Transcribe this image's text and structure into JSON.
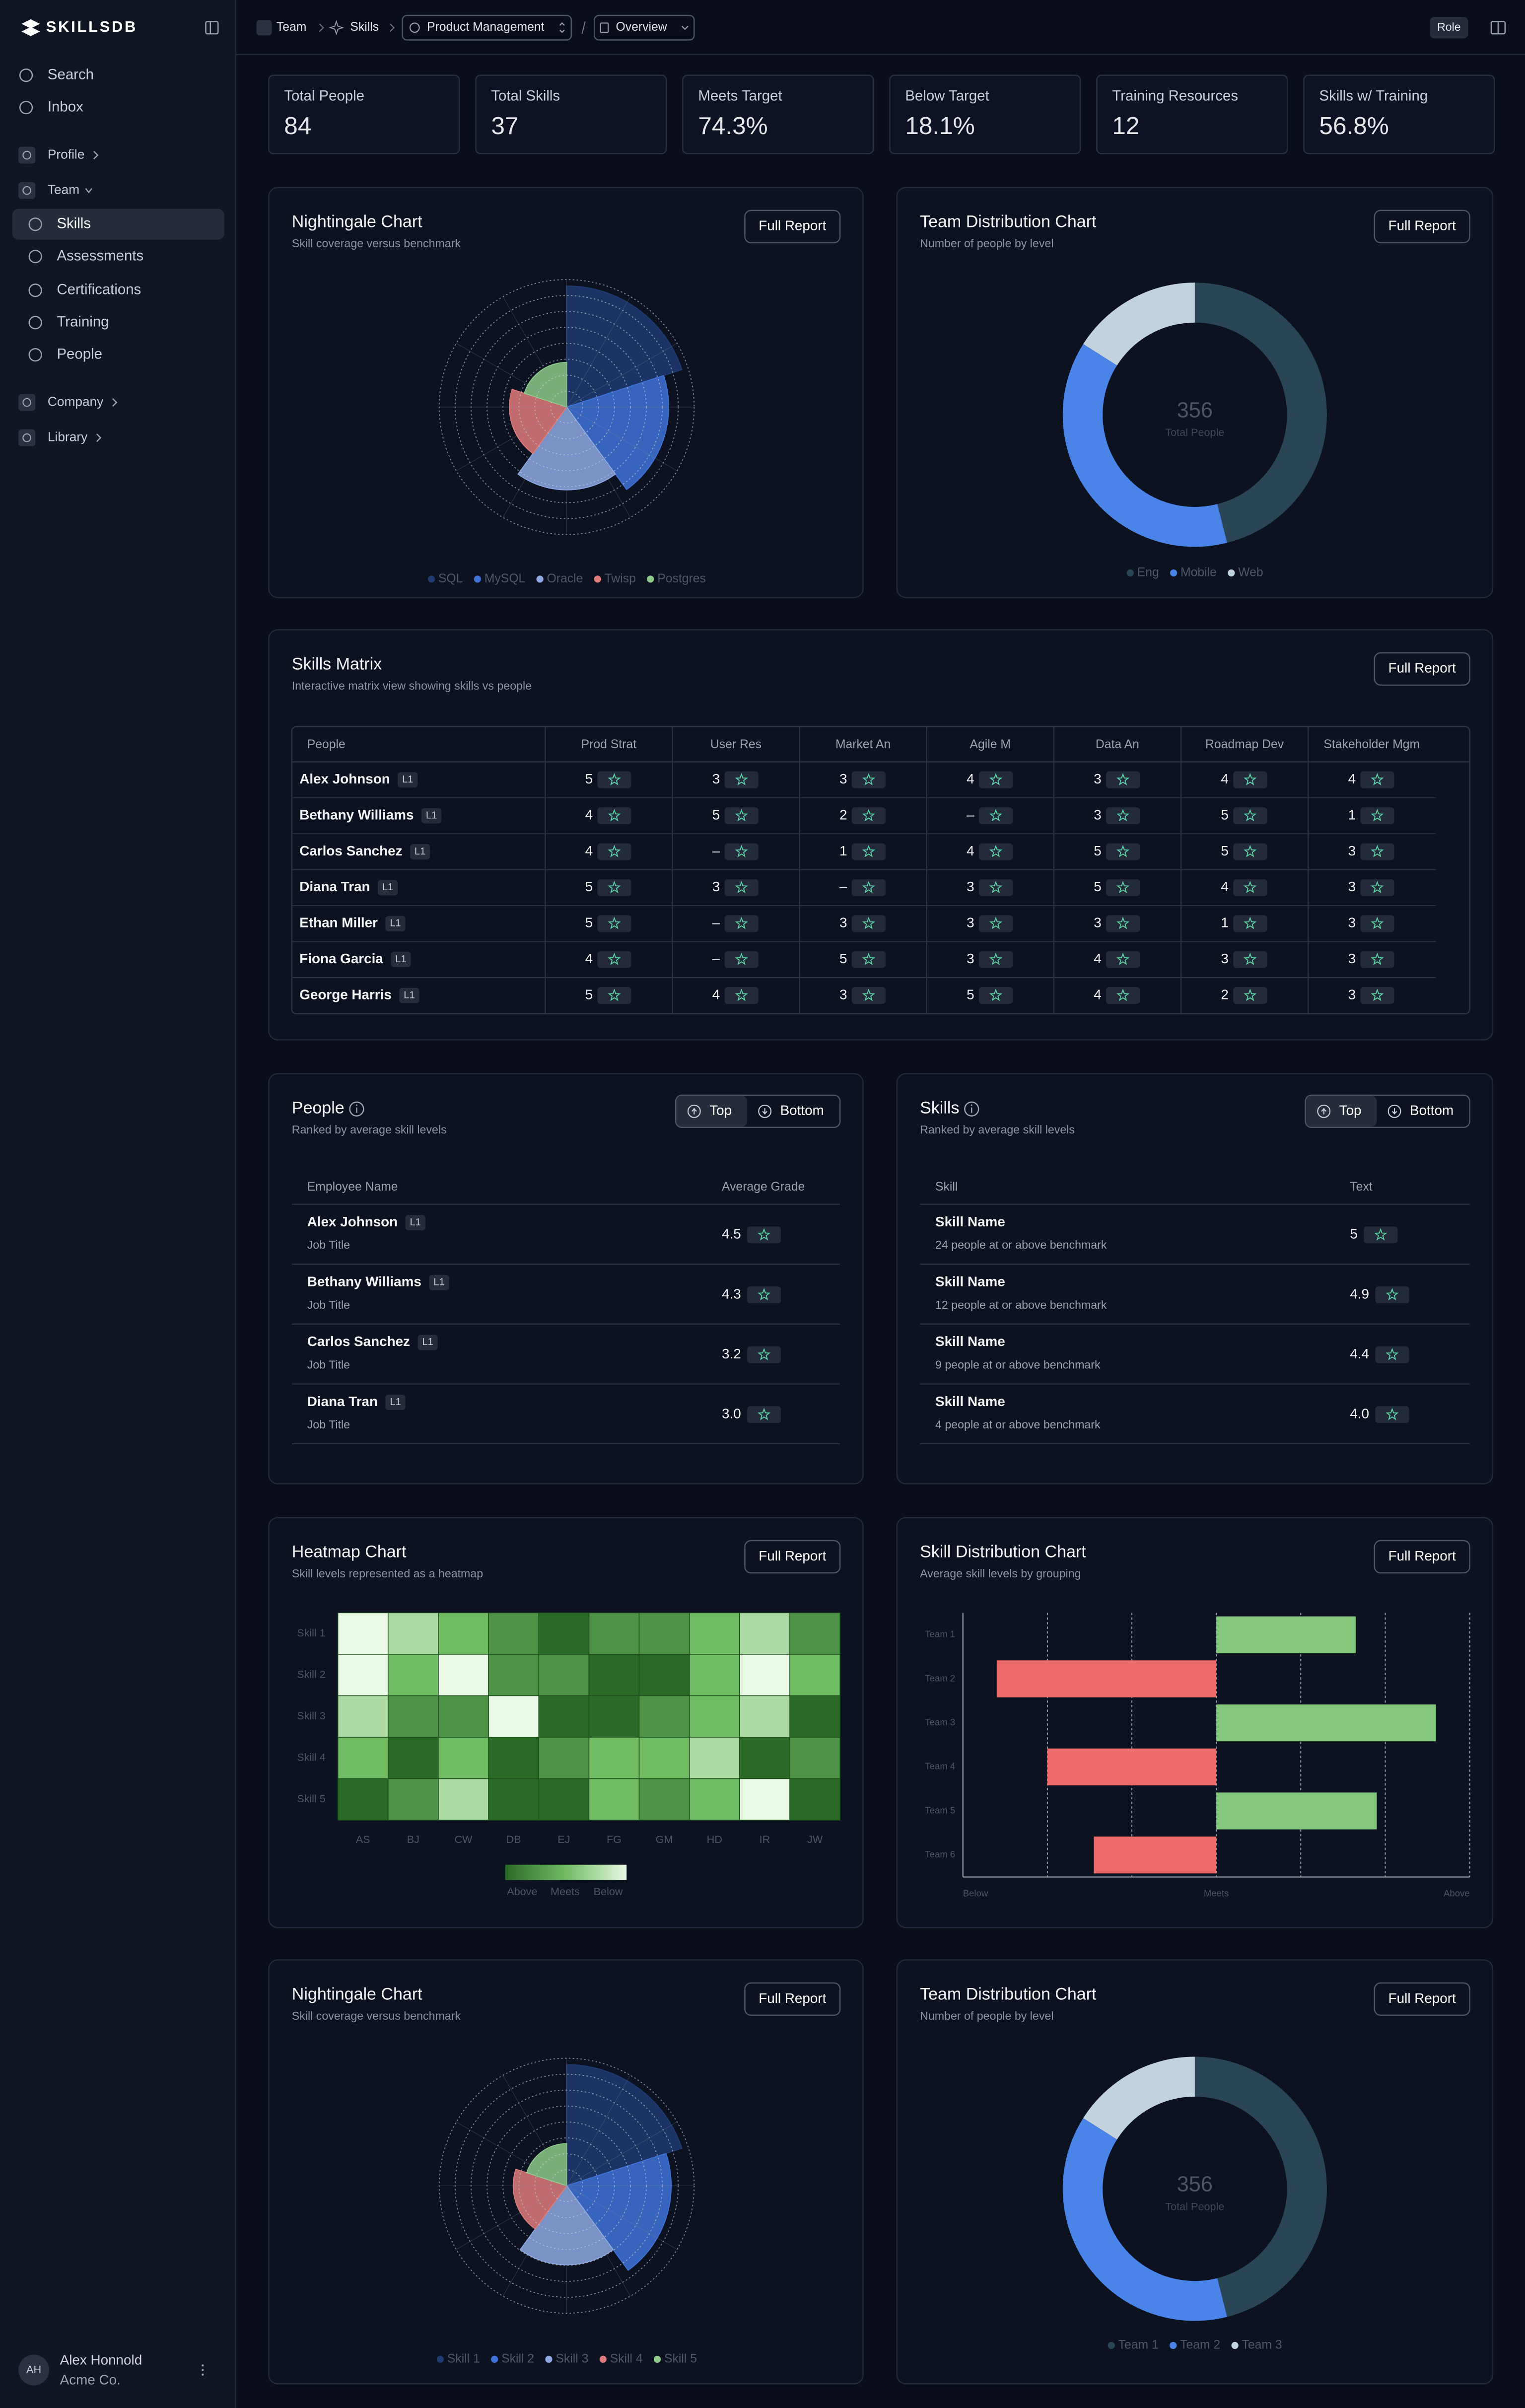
{
  "sidebar": {
    "brand": "SKILLSDB",
    "nav": [
      "Search",
      "Inbox",
      "Profile",
      "Team",
      "Skills",
      "Assessments",
      "Certifications",
      "Training",
      "People",
      "Company",
      "Library"
    ],
    "user": {
      "initials": "AH",
      "name": "Alex Honnold",
      "organization": "Acme Co."
    }
  },
  "topbar": {
    "breadcrumbs": [
      "Team",
      "Skills",
      "Product Management",
      "Overview"
    ],
    "role": "Role"
  },
  "stats": [
    {
      "label": "Total People",
      "value": "84"
    },
    {
      "label": "Total Skills",
      "value": "37"
    },
    {
      "label": "Meets Target",
      "value": "74.3%"
    },
    {
      "label": "Below Target",
      "value": "18.1%"
    },
    {
      "label": "Training Resources",
      "value": "12"
    },
    {
      "label": "Skills w/ Training",
      "value": "56.8%"
    }
  ],
  "chart_data": [
    {
      "type": "nightingale",
      "title": "Nightingale Chart",
      "subtitle": "Skill coverage versus benchmark",
      "action": "Full Report",
      "categories": [
        "SQL",
        "MySQL",
        "Oracle",
        "Twisp",
        "Postgres"
      ],
      "values": [
        95,
        80,
        65,
        45,
        35
      ],
      "colors": [
        "#1f3b72",
        "#3f73d8",
        "#8ea9e3",
        "#e07b7b",
        "#8dca8b"
      ],
      "rlim": [
        0,
        100
      ]
    },
    {
      "type": "donut",
      "title": "Team Distribution Chart",
      "subtitle": "Number of people by level",
      "action": "Full Report",
      "categories": [
        "Eng",
        "Mobile",
        "Web"
      ],
      "values": [
        164,
        135,
        57
      ],
      "colors": [
        "#2a4556",
        "#4a84e8",
        "#c3d3dd"
      ],
      "total": 356,
      "total_label": "Total People"
    },
    {
      "type": "heatmap",
      "title": "Heatmap Chart",
      "subtitle": "Skill levels represented as a heatmap",
      "action": "Full Report",
      "categories": [
        "AS",
        "BJ",
        "CW",
        "DB",
        "EJ",
        "FG",
        "GM",
        "HD",
        "IR",
        "JW"
      ],
      "row_categories": [
        "Skill 1",
        "Skill 2",
        "Skill 3",
        "Skill 4",
        "Skill 5"
      ],
      "values": [
        [
          1,
          2,
          3,
          4,
          5,
          4,
          4,
          3,
          2,
          4
        ],
        [
          1,
          3,
          1,
          4,
          4,
          5,
          5,
          3,
          1,
          3
        ],
        [
          2,
          4,
          4,
          1,
          5,
          5,
          4,
          3,
          2,
          5
        ],
        [
          3,
          5,
          3,
          5,
          4,
          3,
          3,
          2,
          5,
          4
        ],
        [
          5,
          4,
          2,
          5,
          5,
          3,
          4,
          3,
          1,
          5
        ]
      ],
      "zlim": [
        1,
        5
      ],
      "colors": [
        "#eaf8e6",
        "#6fbc62",
        "#2a6a27"
      ],
      "legend": [
        "Above",
        "Meets",
        "Below"
      ]
    },
    {
      "type": "bar",
      "orientation": "horizontal",
      "title": "Skill Distribution Chart",
      "subtitle": "Average skill levels by grouping",
      "action": "Full Report",
      "categories": [
        "Team 1",
        "Team 2",
        "Team 3",
        "Team 4",
        "Team 5",
        "Team 6"
      ],
      "values": [
        1.65,
        -2.6,
        2.6,
        -2,
        1.9,
        -1.45
      ],
      "xlim": [
        -3,
        3
      ],
      "xticks": [
        {
          "value": -3,
          "label": "Below"
        },
        {
          "value": 0,
          "label": "Meets"
        },
        {
          "value": 3,
          "label": "Above"
        }
      ],
      "positive_color": "#82c77b",
      "negative_color": "#ec6b6b",
      "grid": true
    },
    {
      "type": "nightingale",
      "title": "Nightingale Chart",
      "subtitle": "Skill coverage versus benchmark",
      "action": "Full Report",
      "categories": [
        "Skill 1",
        "Skill 2",
        "Skill 3",
        "Skill 4",
        "Skill 5"
      ],
      "values": [
        95,
        82,
        62,
        42,
        33
      ],
      "colors": [
        "#1f3b72",
        "#3f73d8",
        "#8ea9e3",
        "#e07b7b",
        "#8dca8b"
      ],
      "rlim": [
        0,
        100
      ]
    },
    {
      "type": "donut",
      "title": "Team Distribution Chart",
      "subtitle": "Number of people by level",
      "action": "Full Report",
      "categories": [
        "Team 1",
        "Team 2",
        "Team 3"
      ],
      "values": [
        164,
        135,
        57
      ],
      "colors": [
        "#2a4556",
        "#4a84e8",
        "#c3d3dd"
      ],
      "total": 356,
      "total_label": "Total People"
    }
  ],
  "matrix": {
    "title": "Skills Matrix",
    "subtitle": "Interactive matrix view showing skills vs people",
    "action": "Full Report",
    "columns": [
      "People",
      "Prod Strat",
      "User Res",
      "Market An",
      "Agile M",
      "Data An",
      "Roadmap Dev",
      "Stakeholder Mgm"
    ],
    "rows": [
      {
        "name": "Alex Johnson",
        "level": "L1",
        "values": [
          5,
          3,
          3,
          4,
          3,
          4,
          4
        ]
      },
      {
        "name": "Bethany Williams",
        "level": "L1",
        "values": [
          4,
          5,
          2,
          "–",
          3,
          5,
          1
        ]
      },
      {
        "name": "Carlos Sanchez",
        "level": "L1",
        "values": [
          4,
          "–",
          1,
          4,
          5,
          5,
          3
        ]
      },
      {
        "name": "Diana Tran",
        "level": "L1",
        "values": [
          5,
          3,
          "–",
          3,
          5,
          4,
          3
        ]
      },
      {
        "name": "Ethan Miller",
        "level": "L1",
        "values": [
          5,
          "–",
          3,
          3,
          3,
          1,
          3
        ]
      },
      {
        "name": "Fiona Garcia",
        "level": "L1",
        "values": [
          4,
          "–",
          5,
          3,
          4,
          3,
          3
        ]
      },
      {
        "name": "George Harris",
        "level": "L1",
        "values": [
          5,
          4,
          3,
          5,
          4,
          2,
          3
        ]
      }
    ]
  },
  "people_ranking": {
    "title": "People",
    "subtitle": "Ranked by average skill levels",
    "toggle": [
      "Top",
      "Bottom"
    ],
    "columns": [
      "Employee Name",
      "Average Grade"
    ],
    "rows": [
      {
        "name": "Alex Johnson",
        "level": "L1",
        "detail": "Job Title",
        "value": "4.5"
      },
      {
        "name": "Bethany Williams",
        "level": "L1",
        "detail": "Job Title",
        "value": "4.3"
      },
      {
        "name": "Carlos Sanchez",
        "level": "L1",
        "detail": "Job Title",
        "value": "3.2"
      },
      {
        "name": "Diana Tran",
        "level": "L1",
        "detail": "Job Title",
        "value": "3.0"
      }
    ]
  },
  "skills_ranking": {
    "title": "Skills",
    "subtitle": "Ranked by average skill levels",
    "toggle": [
      "Top",
      "Bottom"
    ],
    "columns": [
      "Skill",
      "Text"
    ],
    "rows": [
      {
        "name": "Skill Name",
        "detail": "24 people at or above benchmark",
        "value": "5"
      },
      {
        "name": "Skill Name",
        "detail": "12 people at or above benchmark",
        "value": "4.9"
      },
      {
        "name": "Skill Name",
        "detail": "9 people at or above benchmark",
        "value": "4.4"
      },
      {
        "name": "Skill Name",
        "detail": "4 people at or above benchmark",
        "value": "4.0"
      }
    ]
  }
}
